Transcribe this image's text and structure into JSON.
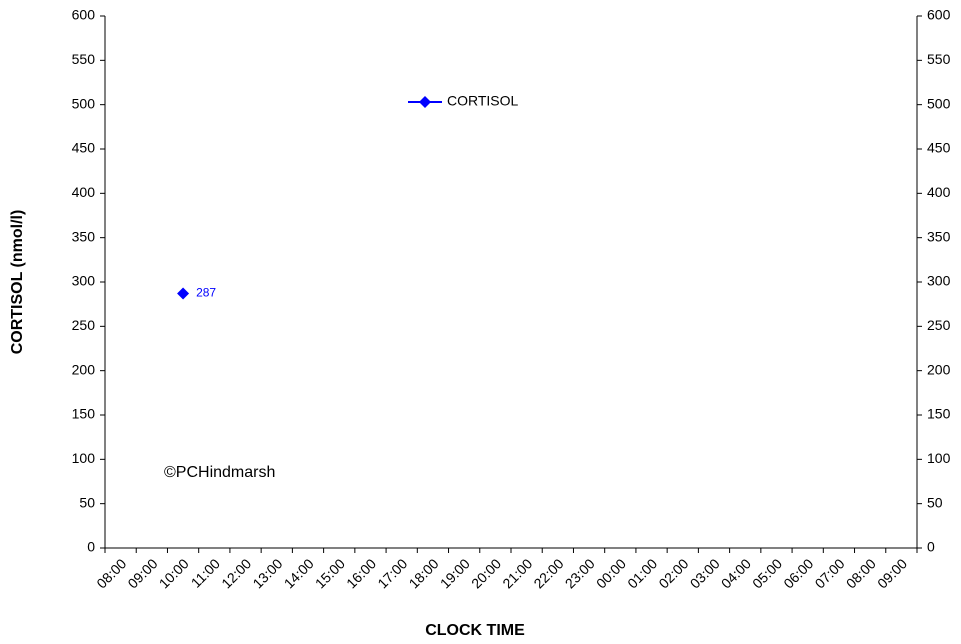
{
  "chart_data": {
    "type": "line",
    "x_label": "CLOCK TIME",
    "y_label": "CORTISOL (nmol/l)",
    "annotation": "©PCHindmarsh",
    "categories": [
      "08:00",
      "09:00",
      "10:00",
      "11:00",
      "12:00",
      "13:00",
      "14:00",
      "15:00",
      "16:00",
      "17:00",
      "18:00",
      "19:00",
      "20:00",
      "21:00",
      "22:00",
      "23:00",
      "00:00",
      "01:00",
      "02:00",
      "03:00",
      "04:00",
      "05:00",
      "06:00",
      "07:00",
      "08:00",
      "09:00"
    ],
    "series": [
      {
        "name": "CORTISOL",
        "color": "#0000ff",
        "values": [
          null,
          null,
          287,
          null,
          null,
          null,
          null,
          null,
          null,
          null,
          null,
          null,
          null,
          null,
          null,
          null,
          null,
          null,
          null,
          null,
          null,
          null,
          null,
          null,
          null,
          null
        ]
      }
    ],
    "ylim": [
      0,
      600
    ],
    "yticks": [
      0,
      50,
      100,
      150,
      200,
      250,
      300,
      350,
      400,
      450,
      500,
      550,
      600
    ],
    "y2lim": [
      0,
      600
    ],
    "y2ticks": [
      0,
      50,
      100,
      150,
      200,
      250,
      300,
      350,
      400,
      450,
      500,
      550,
      600
    ],
    "data_labels": true,
    "grid": false
  }
}
